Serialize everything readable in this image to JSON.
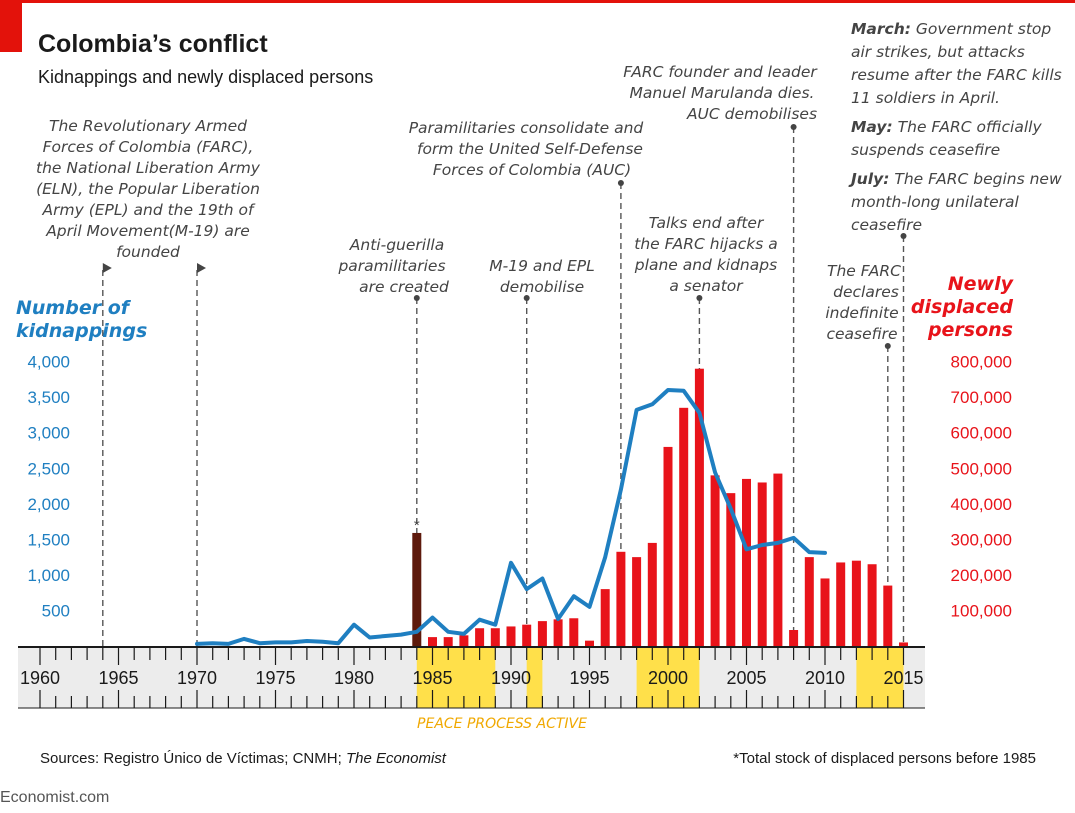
{
  "colors": {
    "brand_red": "#e3120b",
    "kidnapping_blue": "#1f7fc1",
    "displaced_red": "#e8131a",
    "stock_bar": "#5e1a0c",
    "peace_yellow": "#ffe04a",
    "band_gray": "#ececec",
    "peace_text": "#f0a800"
  },
  "header": {
    "title": "Colombia’s conflict",
    "subtitle": "Kidnappings and newly displaced persons"
  },
  "left_axis": {
    "title_lines": [
      "Number of",
      "kidnappings"
    ]
  },
  "right_axis": {
    "title_lines": [
      "Newly",
      "displaced",
      "persons"
    ]
  },
  "annotations": {
    "founded": [
      "The Revolutionary Armed",
      "Forces of Colombia (FARC),",
      "the National Liberation Army",
      "(ELN), the Popular Liberation",
      "Army (EPL) and the 19th of",
      "April Movement(M-19) are",
      "founded"
    ],
    "anti_guerilla": [
      "Anti-guerilla",
      "paramilitaries",
      "are created"
    ],
    "auc": [
      "Paramilitaries consolidate and",
      "form the United Self-Defense",
      "Forces of Colombia (AUC)"
    ],
    "m19": [
      "M-19 and EPL",
      "demobilise"
    ],
    "talks_end": [
      "Talks end after",
      "the FARC hijacks a",
      "plane and kidnaps",
      "a senator"
    ],
    "marulanda": [
      "FARC founder and leader",
      "Manuel Marulanda dies.",
      "AUC demobilises"
    ],
    "ceasefire": [
      "The FARC",
      "declares",
      "indefinite",
      "ceasefire"
    ],
    "march_label": "March:",
    "march_text": [
      " Government stop",
      "air strikes, but attacks",
      "resume after the FARC kills",
      "11 soldiers in April."
    ],
    "may_label": "May:",
    "may_text": [
      " The FARC officially",
      "suspends ceasefire"
    ],
    "july_label": "July:",
    "july_text": [
      " The FARC begins new",
      "month-long unilateral",
      "ceasefire"
    ],
    "asterisk": "*"
  },
  "peace_label": "PEACE PROCESS ACTIVE",
  "footer": {
    "sources_prefix": "Sources: Registro Único de Víctimas; CNMH; ",
    "sources_italic": "The Economist",
    "footnote": "*Total stock of displaced persons before 1985",
    "watermark": "Economist.com"
  },
  "chart_data": {
    "type": "bar+line",
    "title": "Colombia’s conflict",
    "subtitle": "Kidnappings and newly displaced persons",
    "x_range": [
      1960,
      2015
    ],
    "x_ticks": [
      1960,
      1965,
      1970,
      1975,
      1980,
      1985,
      1990,
      1995,
      2000,
      2005,
      2010,
      2015
    ],
    "left_axis": {
      "label": "Number of kidnappings",
      "ylim": [
        0,
        4500
      ],
      "ticks": [
        500,
        1000,
        1500,
        2000,
        2500,
        3000,
        3500,
        4000
      ],
      "tick_labels": [
        "500",
        "1,000",
        "1,500",
        "2,000",
        "2,500",
        "3,000",
        "3,500",
        "4,000"
      ]
    },
    "right_axis": {
      "label": "Newly displaced persons",
      "ylim": [
        0,
        900000
      ],
      "ticks": [
        100000,
        200000,
        300000,
        400000,
        500000,
        600000,
        700000,
        800000
      ],
      "tick_labels": [
        "100,000",
        "200,000",
        "300,000",
        "400,000",
        "500,000",
        "600,000",
        "700,000",
        "800,000"
      ]
    },
    "kidnappings": {
      "name": "Number of kidnappings",
      "x": [
        1970,
        1971,
        1972,
        1973,
        1974,
        1975,
        1976,
        1977,
        1978,
        1979,
        1980,
        1981,
        1982,
        1983,
        1984,
        1985,
        1986,
        1987,
        1988,
        1989,
        1990,
        1991,
        1992,
        1993,
        1994,
        1995,
        1996,
        1997,
        1998,
        1999,
        2000,
        2001,
        2002,
        2003,
        2004,
        2005,
        2006,
        2007,
        2008,
        2009,
        2010
      ],
      "values": [
        30,
        40,
        30,
        100,
        40,
        50,
        50,
        70,
        60,
        40,
        300,
        120,
        140,
        160,
        200,
        400,
        200,
        170,
        370,
        300,
        1170,
        800,
        950,
        380,
        700,
        550,
        1250,
        2200,
        3320,
        3400,
        3600,
        3590,
        3280,
        2440,
        1930,
        1360,
        1420,
        1450,
        1520,
        1320,
        1310
      ]
    },
    "displaced": {
      "name": "Newly displaced persons",
      "x": [
        1985,
        1986,
        1987,
        1988,
        1989,
        1990,
        1991,
        1992,
        1993,
        1994,
        1995,
        1996,
        1997,
        1998,
        1999,
        2000,
        2001,
        2002,
        2003,
        2004,
        2005,
        2006,
        2007,
        2008,
        2009,
        2010,
        2011,
        2012,
        2013,
        2014,
        2015
      ],
      "values": [
        25000,
        25000,
        30000,
        50000,
        50000,
        55000,
        60000,
        70000,
        75000,
        78000,
        15000,
        160000,
        265000,
        250000,
        290000,
        560000,
        670000,
        780000,
        480000,
        430000,
        470000,
        460000,
        485000,
        45000,
        250000,
        190000,
        235000,
        240000,
        230000,
        170000,
        10000
      ]
    },
    "stock_before_1985": {
      "x": 1984,
      "value": 318000,
      "label": "*"
    },
    "event_lines": [
      1964,
      1970,
      1984,
      1991,
      1997,
      2002,
      2008,
      2014,
      2015
    ],
    "peace_periods": [
      [
        1984,
        1989
      ],
      [
        1991,
        1992
      ],
      [
        1998,
        2002
      ],
      [
        2012,
        2015
      ]
    ]
  }
}
